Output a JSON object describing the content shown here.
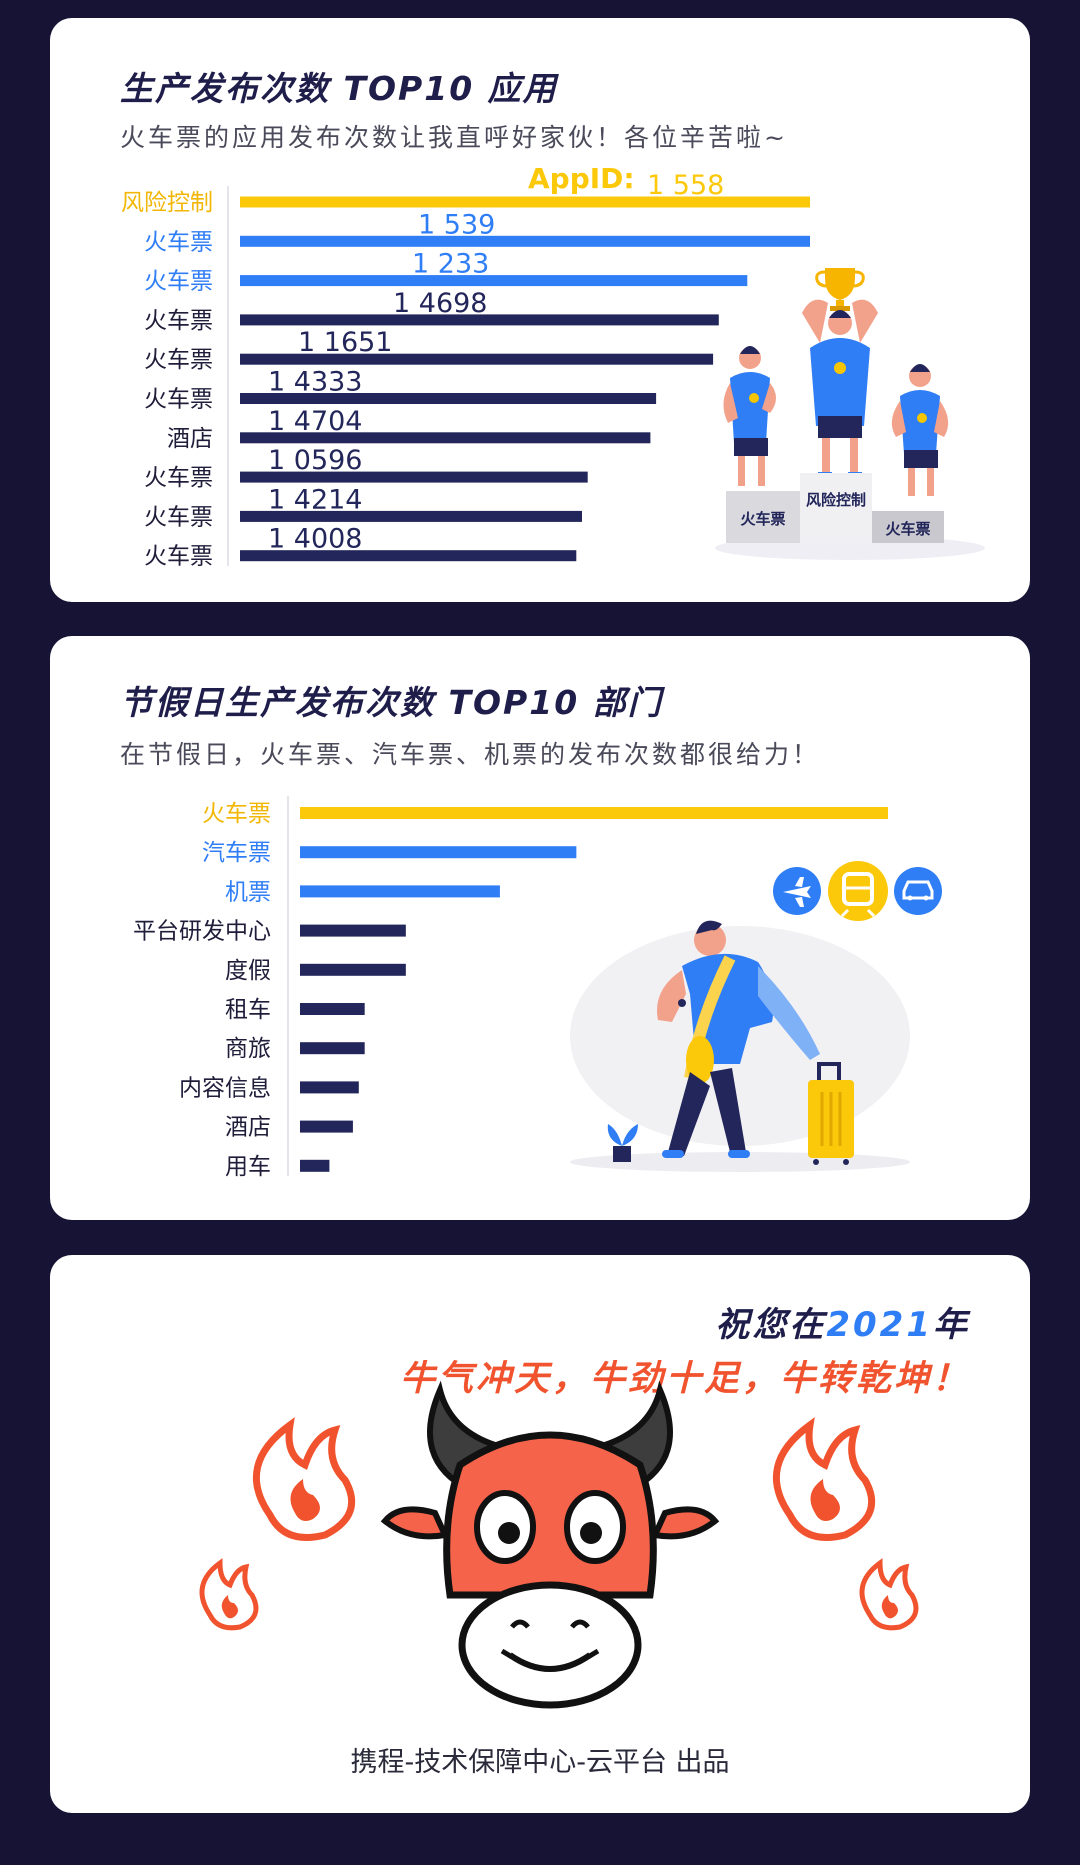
{
  "section1": {
    "title": "生产发布次数 TOP10 应用",
    "subtitle": "火车票的应用发布次数让我直呼好家伙！各位辛苦啦~",
    "appid_label": "AppID:",
    "podium": {
      "first": "风险控制",
      "second": "火车票",
      "third": "火车票"
    }
  },
  "section2": {
    "title": "节假日生产发布次数 TOP10 部门",
    "subtitle": "在节假日，火车票、汽车票、机票的发布次数都很给力！"
  },
  "section3": {
    "wish_prefix": "祝您在",
    "wish_year": "2021",
    "wish_suffix": "年",
    "wish_line2": "牛气冲天，牛劲十足，牛转乾坤！",
    "footer": "携程-技术保障中心-云平台 出品"
  },
  "colors": {
    "gold": "#fcc80a",
    "blue": "#2f7ef5",
    "navy": "#23265a",
    "red": "#f0532d"
  },
  "chart_data": [
    {
      "type": "bar",
      "orientation": "horizontal",
      "categories": [
        "风险控制",
        "火车票",
        "火车票",
        "火车票",
        "火车票",
        "火车票",
        "酒店",
        "火车票",
        "火车票",
        "火车票"
      ],
      "values": [
        100,
        100,
        89,
        84,
        83,
        73,
        72,
        61,
        60,
        59
      ],
      "value_unit": "percent of top value (estimated)",
      "data_labels": [
        "1   558",
        "1   539",
        "1   233",
        "1   4698",
        "1   1651",
        "1   4333",
        "1   4704",
        "1   0596",
        "1   4214",
        "1   4008"
      ],
      "bar_colors": [
        "#fcc80a",
        "#2f7ef5",
        "#2f7ef5",
        "#23265a",
        "#23265a",
        "#23265a",
        "#23265a",
        "#23265a",
        "#23265a",
        "#23265a"
      ],
      "label_colors": [
        "#f2b705",
        "#2f7ef5",
        "#2f7ef5",
        "#1f1d3a",
        "#1f1d3a",
        "#1f1d3a",
        "#1f1d3a",
        "#1f1d3a",
        "#1f1d3a",
        "#1f1d3a"
      ],
      "xlim": [
        0,
        100
      ]
    },
    {
      "type": "bar",
      "orientation": "horizontal",
      "categories": [
        "火车票",
        "汽车票",
        "机票",
        "平台研发中心",
        "度假",
        "租车",
        "商旅",
        "内容信息",
        "酒店",
        "用车"
      ],
      "values": [
        100,
        47,
        34,
        18,
        18,
        11,
        11,
        10,
        9,
        5
      ],
      "value_unit": "percent of top value (estimated)",
      "bar_colors": [
        "#fcc80a",
        "#2f7ef5",
        "#2f7ef5",
        "#23265a",
        "#23265a",
        "#23265a",
        "#23265a",
        "#23265a",
        "#23265a",
        "#23265a"
      ],
      "label_colors": [
        "#f2b705",
        "#2f7ef5",
        "#2f7ef5",
        "#1f1d3a",
        "#1f1d3a",
        "#1f1d3a",
        "#1f1d3a",
        "#1f1d3a",
        "#1f1d3a",
        "#1f1d3a"
      ],
      "xlim": [
        0,
        100
      ]
    }
  ]
}
